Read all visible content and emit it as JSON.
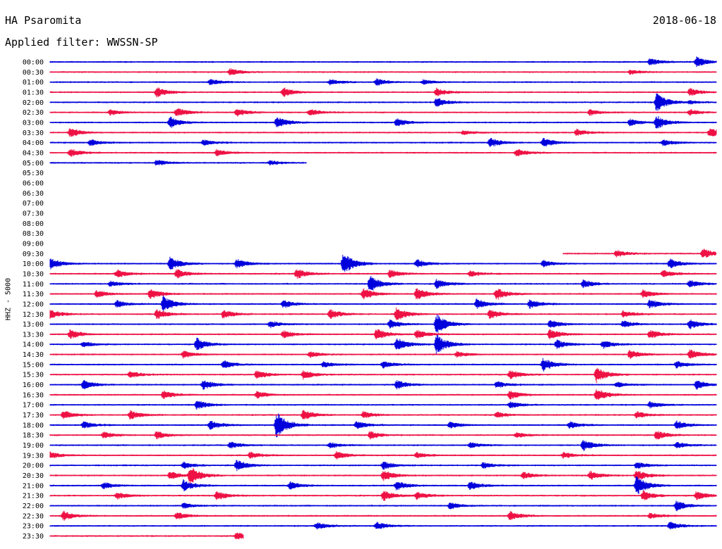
{
  "header": {
    "station": "HA Psaromita",
    "filter": "Applied filter: WWSSN-SP",
    "date": "2018-06-18"
  },
  "axis": {
    "ylabel": "HHZ - 5000"
  },
  "colors": {
    "trace_a": "#0000dd",
    "trace_b": "#ee1144"
  },
  "chart_data": {
    "type": "line",
    "title": "HA Psaromita",
    "subtitle": "Applied filter: WWSSN-SP",
    "xlabel": "",
    "ylabel": "HHZ - 5000",
    "grid": false,
    "legend": "none",
    "row_labels": [
      "00:00",
      "00:30",
      "01:00",
      "01:30",
      "02:00",
      "02:30",
      "03:00",
      "03:30",
      "04:00",
      "04:30",
      "05:00",
      "05:30",
      "06:00",
      "06:30",
      "07:00",
      "07:30",
      "08:00",
      "08:30",
      "09:00",
      "09:30",
      "10:00",
      "10:30",
      "11:00",
      "11:30",
      "12:00",
      "12:30",
      "13:00",
      "13:30",
      "14:00",
      "14:30",
      "15:00",
      "15:30",
      "16:00",
      "16:30",
      "17:00",
      "17:30",
      "18:00",
      "18:30",
      "19:00",
      "19:30",
      "20:00",
      "20:30",
      "21:00",
      "21:30",
      "22:00",
      "22:30",
      "23:00",
      "23:30"
    ],
    "row_color_pattern": [
      "trace_a",
      "trace_b"
    ],
    "coverage": [
      [
        0,
        1
      ],
      [
        0,
        1
      ],
      [
        0,
        1
      ],
      [
        0,
        1
      ],
      [
        0,
        1
      ],
      [
        0,
        1
      ],
      [
        0,
        1
      ],
      [
        0,
        1
      ],
      [
        0,
        1
      ],
      [
        0,
        1
      ],
      [
        0,
        0.385
      ],
      null,
      null,
      null,
      null,
      null,
      null,
      null,
      null,
      [
        0.77,
        1
      ],
      [
        0,
        1
      ],
      [
        0,
        1
      ],
      [
        0,
        1
      ],
      [
        0,
        1
      ],
      [
        0,
        1
      ],
      [
        0,
        1
      ],
      [
        0,
        1
      ],
      [
        0,
        1
      ],
      [
        0,
        1
      ],
      [
        0,
        1
      ],
      [
        0,
        1
      ],
      [
        0,
        1
      ],
      [
        0,
        1
      ],
      [
        0,
        1
      ],
      [
        0,
        1
      ],
      [
        0,
        1
      ],
      [
        0,
        1
      ],
      [
        0,
        1
      ],
      [
        0,
        1
      ],
      [
        0,
        1
      ],
      [
        0,
        1
      ],
      [
        0,
        1
      ],
      [
        0,
        1
      ],
      [
        0,
        1
      ],
      [
        0,
        1
      ],
      [
        0,
        1
      ],
      [
        0,
        1
      ],
      [
        0,
        0.29
      ]
    ],
    "events": {
      "0": [
        [
          0.9,
          0.6
        ],
        [
          0.97,
          0.9
        ]
      ],
      "1": [
        [
          0.27,
          0.6
        ],
        [
          0.87,
          0.4
        ]
      ],
      "2": [
        [
          0.24,
          0.5
        ],
        [
          0.42,
          0.5
        ],
        [
          0.49,
          0.6
        ],
        [
          0.56,
          0.4
        ]
      ],
      "3": [
        [
          0.16,
          0.9
        ],
        [
          0.35,
          0.8
        ],
        [
          0.58,
          0.7
        ],
        [
          0.96,
          0.7
        ]
      ],
      "4": [
        [
          0.58,
          0.8
        ],
        [
          0.91,
          1.6
        ],
        [
          0.96,
          0.3
        ]
      ],
      "5": [
        [
          0.09,
          0.5
        ],
        [
          0.19,
          0.8
        ],
        [
          0.28,
          0.7
        ],
        [
          0.39,
          0.6
        ],
        [
          0.81,
          0.5
        ],
        [
          0.96,
          0.5
        ]
      ],
      "6": [
        [
          0.18,
          1.0
        ],
        [
          0.34,
          1.0
        ],
        [
          0.52,
          0.7
        ],
        [
          0.87,
          0.6
        ],
        [
          0.91,
          1.2
        ]
      ],
      "7": [
        [
          0.03,
          0.8
        ],
        [
          0.62,
          0.4
        ],
        [
          0.79,
          0.6
        ],
        [
          0.99,
          0.8
        ]
      ],
      "8": [
        [
          0.06,
          0.6
        ],
        [
          0.23,
          0.5
        ],
        [
          0.66,
          0.9
        ],
        [
          0.74,
          0.8
        ],
        [
          0.92,
          0.6
        ]
      ],
      "9": [
        [
          0.03,
          0.7
        ],
        [
          0.25,
          0.6
        ],
        [
          0.7,
          0.7
        ]
      ],
      "10": [
        [
          0.16,
          0.5
        ],
        [
          0.33,
          0.4
        ]
      ],
      "19": [
        [
          0.85,
          0.6
        ],
        [
          0.98,
          0.9
        ]
      ],
      "20": [
        [
          0.0,
          1.0
        ],
        [
          0.18,
          1.2
        ],
        [
          0.28,
          0.9
        ],
        [
          0.44,
          2.0
        ],
        [
          0.55,
          0.7
        ],
        [
          0.74,
          0.6
        ],
        [
          0.93,
          0.9
        ]
      ],
      "21": [
        [
          0.1,
          0.7
        ],
        [
          0.19,
          0.8
        ],
        [
          0.37,
          0.9
        ],
        [
          0.51,
          0.7
        ],
        [
          0.63,
          0.5
        ],
        [
          0.92,
          0.7
        ]
      ],
      "22": [
        [
          0.09,
          0.5
        ],
        [
          0.48,
          1.5
        ],
        [
          0.58,
          0.9
        ],
        [
          0.8,
          0.7
        ],
        [
          0.96,
          0.7
        ]
      ],
      "23": [
        [
          0.07,
          0.6
        ],
        [
          0.15,
          0.9
        ],
        [
          0.47,
          1.0
        ],
        [
          0.55,
          1.1
        ],
        [
          0.67,
          1.1
        ],
        [
          0.89,
          0.7
        ]
      ],
      "24": [
        [
          0.1,
          0.6
        ],
        [
          0.17,
          1.5
        ],
        [
          0.35,
          0.7
        ],
        [
          0.64,
          0.9
        ],
        [
          0.72,
          0.8
        ],
        [
          0.9,
          0.8
        ]
      ],
      "25": [
        [
          0.0,
          0.8
        ],
        [
          0.16,
          0.9
        ],
        [
          0.26,
          0.8
        ],
        [
          0.42,
          0.9
        ],
        [
          0.52,
          1.2
        ],
        [
          0.66,
          0.8
        ],
        [
          0.86,
          0.6
        ]
      ],
      "26": [
        [
          0.33,
          0.6
        ],
        [
          0.51,
          0.8
        ],
        [
          0.58,
          1.8
        ],
        [
          0.75,
          0.7
        ],
        [
          0.86,
          0.6
        ],
        [
          0.96,
          0.8
        ]
      ],
      "27": [
        [
          0.03,
          0.8
        ],
        [
          0.35,
          0.7
        ],
        [
          0.49,
          1.0
        ],
        [
          0.55,
          0.8
        ],
        [
          0.75,
          0.9
        ],
        [
          0.9,
          0.8
        ]
      ],
      "28": [
        [
          0.05,
          0.5
        ],
        [
          0.22,
          1.1
        ],
        [
          0.52,
          1.2
        ],
        [
          0.58,
          1.8
        ],
        [
          0.76,
          0.8
        ],
        [
          0.83,
          0.7
        ]
      ],
      "29": [
        [
          0.2,
          0.6
        ],
        [
          0.39,
          0.5
        ],
        [
          0.61,
          0.5
        ],
        [
          0.87,
          0.8
        ],
        [
          0.96,
          0.9
        ]
      ],
      "30": [
        [
          0.26,
          0.7
        ],
        [
          0.41,
          0.5
        ],
        [
          0.5,
          0.6
        ],
        [
          0.74,
          1.2
        ],
        [
          0.94,
          0.6
        ]
      ],
      "31": [
        [
          0.12,
          0.6
        ],
        [
          0.31,
          0.8
        ],
        [
          0.38,
          0.8
        ],
        [
          0.69,
          0.8
        ],
        [
          0.82,
          1.4
        ]
      ],
      "32": [
        [
          0.05,
          0.8
        ],
        [
          0.23,
          0.8
        ],
        [
          0.52,
          0.8
        ],
        [
          0.67,
          0.6
        ],
        [
          0.85,
          0.5
        ],
        [
          0.97,
          0.8
        ]
      ],
      "33": [
        [
          0.17,
          0.7
        ],
        [
          0.31,
          0.6
        ],
        [
          0.69,
          0.8
        ],
        [
          0.82,
          1.2
        ]
      ],
      "34": [
        [
          0.22,
          0.8
        ],
        [
          0.69,
          0.6
        ],
        [
          0.9,
          0.6
        ]
      ],
      "35": [
        [
          0.02,
          0.8
        ],
        [
          0.12,
          0.8
        ],
        [
          0.38,
          0.9
        ],
        [
          0.47,
          0.6
        ],
        [
          0.67,
          0.5
        ],
        [
          0.88,
          0.6
        ]
      ],
      "36": [
        [
          0.05,
          0.6
        ],
        [
          0.24,
          0.8
        ],
        [
          0.34,
          2.4
        ],
        [
          0.46,
          0.7
        ],
        [
          0.6,
          0.6
        ],
        [
          0.78,
          0.6
        ],
        [
          0.94,
          0.7
        ]
      ],
      "37": [
        [
          0.08,
          0.6
        ],
        [
          0.16,
          0.7
        ],
        [
          0.48,
          0.7
        ],
        [
          0.7,
          0.5
        ],
        [
          0.91,
          0.8
        ]
      ],
      "38": [
        [
          0.27,
          0.6
        ],
        [
          0.42,
          0.5
        ],
        [
          0.63,
          0.5
        ],
        [
          0.8,
          1.0
        ],
        [
          0.94,
          0.6
        ]
      ],
      "39": [
        [
          0.0,
          0.6
        ],
        [
          0.3,
          0.6
        ],
        [
          0.43,
          0.7
        ],
        [
          0.55,
          0.5
        ],
        [
          0.77,
          0.5
        ]
      ],
      "40": [
        [
          0.2,
          0.6
        ],
        [
          0.28,
          1.0
        ],
        [
          0.5,
          0.7
        ],
        [
          0.65,
          0.5
        ],
        [
          0.88,
          0.6
        ]
      ],
      "41": [
        [
          0.18,
          0.8
        ],
        [
          0.21,
          1.6
        ],
        [
          0.5,
          0.9
        ],
        [
          0.71,
          0.6
        ],
        [
          0.81,
          0.8
        ],
        [
          0.88,
          1.0
        ]
      ],
      "42": [
        [
          0.08,
          0.6
        ],
        [
          0.2,
          1.0
        ],
        [
          0.36,
          0.7
        ],
        [
          0.52,
          0.8
        ],
        [
          0.63,
          0.8
        ],
        [
          0.88,
          1.8
        ]
      ],
      "43": [
        [
          0.1,
          0.6
        ],
        [
          0.25,
          0.8
        ],
        [
          0.5,
          0.9
        ],
        [
          0.55,
          0.7
        ],
        [
          0.89,
          0.9
        ],
        [
          0.97,
          0.8
        ]
      ],
      "44": [
        [
          0.2,
          0.5
        ],
        [
          0.6,
          0.6
        ],
        [
          0.94,
          0.9
        ]
      ],
      "45": [
        [
          0.02,
          0.8
        ],
        [
          0.19,
          0.6
        ],
        [
          0.69,
          0.8
        ],
        [
          0.9,
          0.5
        ]
      ],
      "46": [
        [
          0.4,
          0.6
        ],
        [
          0.49,
          0.7
        ],
        [
          0.93,
          0.7
        ]
      ],
      "47": [
        [
          0.28,
          0.7
        ]
      ]
    }
  }
}
